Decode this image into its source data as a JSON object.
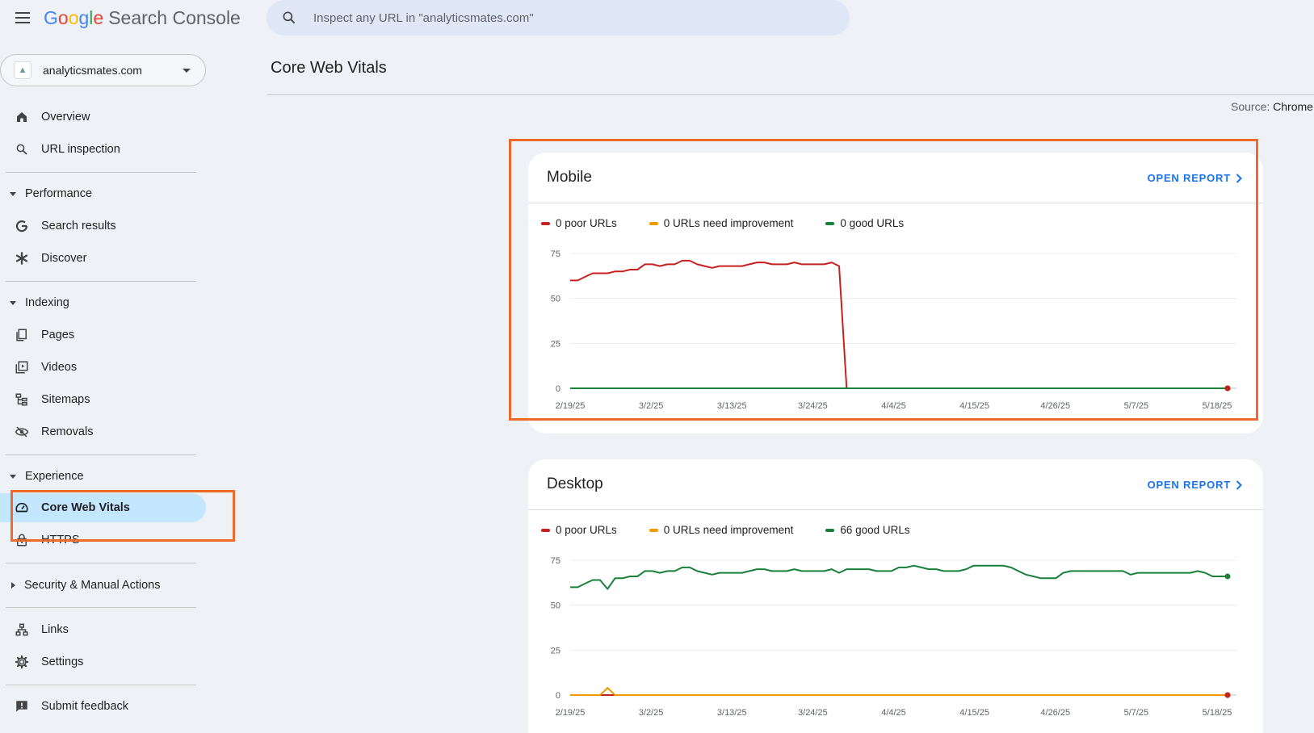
{
  "app": {
    "logo_letters": [
      "G",
      "o",
      "o",
      "g",
      "l",
      "e"
    ],
    "product": "Search Console"
  },
  "search": {
    "placeholder": "Inspect any URL in \"analyticsmates.com\""
  },
  "property": {
    "name": "analyticsmates.com"
  },
  "sidebar": {
    "overview": "Overview",
    "url_inspection": "URL inspection",
    "performance": {
      "label": "Performance",
      "items": [
        "Search results",
        "Discover"
      ]
    },
    "indexing": {
      "label": "Indexing",
      "items": [
        "Pages",
        "Videos",
        "Sitemaps",
        "Removals"
      ]
    },
    "experience": {
      "label": "Experience",
      "items": [
        "Core Web Vitals",
        "HTTPS"
      ]
    },
    "security": "Security & Manual Actions",
    "links": "Links",
    "settings": "Settings",
    "feedback": "Submit feedback"
  },
  "page": {
    "title": "Core Web Vitals",
    "source_label": "Source:",
    "source_value": "Chrome"
  },
  "colors": {
    "poor": "#c5221f",
    "improve": "#f29900",
    "good": "#188038",
    "accent": "#1a73e8",
    "highlight": "#ee6a2c"
  },
  "cards": [
    {
      "title": "Mobile",
      "open_label": "OPEN REPORT",
      "legend": [
        "0 poor URLs",
        "0 URLs need improvement",
        "0 good URLs"
      ]
    },
    {
      "title": "Desktop",
      "open_label": "OPEN REPORT",
      "legend": [
        "0 poor URLs",
        "0 URLs need improvement",
        "66 good URLs"
      ]
    }
  ],
  "chart_data": [
    {
      "type": "line",
      "title": "Mobile",
      "x_ticks": [
        "2/19/25",
        "3/2/25",
        "3/13/25",
        "3/24/25",
        "4/4/25",
        "4/15/25",
        "4/26/25",
        "5/7/25",
        "5/18/25"
      ],
      "ylim": [
        0,
        75
      ],
      "y_ticks": [
        0,
        25,
        50,
        75
      ],
      "grid": true,
      "legend_position": "top",
      "series": [
        {
          "name": "0 poor URLs",
          "color": "#c5221f",
          "values": [
            60,
            60,
            62,
            64,
            64,
            64,
            65,
            65,
            66,
            66,
            69,
            69,
            68,
            69,
            69,
            71,
            71,
            69,
            68,
            67,
            68,
            68,
            68,
            68,
            69,
            70,
            70,
            69,
            69,
            69,
            70,
            69,
            69,
            69,
            69,
            70,
            68,
            0,
            0,
            0,
            0,
            0,
            0,
            0,
            0,
            0,
            0,
            0,
            0,
            0,
            0,
            0,
            0,
            0,
            0,
            0,
            0,
            0,
            0,
            0,
            0,
            0,
            0,
            0,
            0,
            0,
            0,
            0,
            0,
            0,
            0,
            0,
            0,
            0,
            0,
            0,
            0,
            0,
            0,
            0,
            0,
            0,
            0,
            0,
            0,
            0,
            0,
            0,
            0
          ]
        },
        {
          "name": "0 URLs need improvement",
          "color": "#f29900",
          "values": [
            0,
            0,
            0,
            0,
            0,
            0,
            0,
            0,
            0,
            0,
            0,
            0,
            0,
            0,
            0,
            0,
            0,
            0,
            0,
            0,
            0,
            0,
            0,
            0,
            0,
            0,
            0,
            0,
            0,
            0,
            0,
            0,
            0,
            0,
            0,
            0,
            0,
            0,
            0,
            0,
            0,
            0,
            0,
            0,
            0,
            0,
            0,
            0,
            0,
            0,
            0,
            0,
            0,
            0,
            0,
            0,
            0,
            0,
            0,
            0,
            0,
            0,
            0,
            0,
            0,
            0,
            0,
            0,
            0,
            0,
            0,
            0,
            0,
            0,
            0,
            0,
            0,
            0,
            0,
            0,
            0,
            0,
            0,
            0,
            0,
            0,
            0,
            0,
            0
          ]
        },
        {
          "name": "0 good URLs",
          "color": "#188038",
          "values": [
            0,
            0,
            0,
            0,
            0,
            0,
            0,
            0,
            0,
            0,
            0,
            0,
            0,
            0,
            0,
            0,
            0,
            0,
            0,
            0,
            0,
            0,
            0,
            0,
            0,
            0,
            0,
            0,
            0,
            0,
            0,
            0,
            0,
            0,
            0,
            0,
            0,
            0,
            0,
            0,
            0,
            0,
            0,
            0,
            0,
            0,
            0,
            0,
            0,
            0,
            0,
            0,
            0,
            0,
            0,
            0,
            0,
            0,
            0,
            0,
            0,
            0,
            0,
            0,
            0,
            0,
            0,
            0,
            0,
            0,
            0,
            0,
            0,
            0,
            0,
            0,
            0,
            0,
            0,
            0,
            0,
            0,
            0,
            0,
            0,
            0,
            0,
            0,
            0
          ]
        }
      ]
    },
    {
      "type": "line",
      "title": "Desktop",
      "x_ticks": [
        "2/19/25",
        "3/2/25",
        "3/13/25",
        "3/24/25",
        "4/4/25",
        "4/15/25",
        "4/26/25",
        "5/7/25",
        "5/18/25"
      ],
      "ylim": [
        0,
        75
      ],
      "y_ticks": [
        0,
        25,
        50,
        75
      ],
      "grid": true,
      "legend_position": "top",
      "series": [
        {
          "name": "0 poor URLs",
          "color": "#c5221f",
          "values": [
            0,
            0,
            0,
            0,
            0,
            0,
            0,
            0,
            0,
            0,
            0,
            0,
            0,
            0,
            0,
            0,
            0,
            0,
            0,
            0,
            0,
            0,
            0,
            0,
            0,
            0,
            0,
            0,
            0,
            0,
            0,
            0,
            0,
            0,
            0,
            0,
            0,
            0,
            0,
            0,
            0,
            0,
            0,
            0,
            0,
            0,
            0,
            0,
            0,
            0,
            0,
            0,
            0,
            0,
            0,
            0,
            0,
            0,
            0,
            0,
            0,
            0,
            0,
            0,
            0,
            0,
            0,
            0,
            0,
            0,
            0,
            0,
            0,
            0,
            0,
            0,
            0,
            0,
            0,
            0,
            0,
            0,
            0,
            0,
            0,
            0,
            0,
            0,
            0
          ]
        },
        {
          "name": "0 URLs need improvement",
          "color": "#f29900",
          "values": [
            0,
            0,
            0,
            0,
            0,
            4,
            0,
            0,
            0,
            0,
            0,
            0,
            0,
            0,
            0,
            0,
            0,
            0,
            0,
            0,
            0,
            0,
            0,
            0,
            0,
            0,
            0,
            0,
            0,
            0,
            0,
            0,
            0,
            0,
            0,
            0,
            0,
            0,
            0,
            0,
            0,
            0,
            0,
            0,
            0,
            0,
            0,
            0,
            0,
            0,
            0,
            0,
            0,
            0,
            0,
            0,
            0,
            0,
            0,
            0,
            0,
            0,
            0,
            0,
            0,
            0,
            0,
            0,
            0,
            0,
            0,
            0,
            0,
            0,
            0,
            0,
            0,
            0,
            0,
            0,
            0,
            0,
            0,
            0,
            0,
            0,
            0,
            0,
            0
          ]
        },
        {
          "name": "66 good URLs",
          "color": "#188038",
          "values": [
            60,
            60,
            62,
            64,
            64,
            59,
            65,
            65,
            66,
            66,
            69,
            69,
            68,
            69,
            69,
            71,
            71,
            69,
            68,
            67,
            68,
            68,
            68,
            68,
            69,
            70,
            70,
            69,
            69,
            69,
            70,
            69,
            69,
            69,
            69,
            70,
            68,
            70,
            70,
            70,
            70,
            69,
            69,
            69,
            71,
            71,
            72,
            71,
            70,
            70,
            69,
            69,
            69,
            70,
            72,
            72,
            72,
            72,
            72,
            71,
            69,
            67,
            66,
            65,
            65,
            65,
            68,
            69,
            69,
            69,
            69,
            69,
            69,
            69,
            69,
            67,
            68,
            68,
            68,
            68,
            68,
            68,
            68,
            68,
            69,
            68,
            66,
            66,
            66
          ]
        }
      ]
    }
  ]
}
